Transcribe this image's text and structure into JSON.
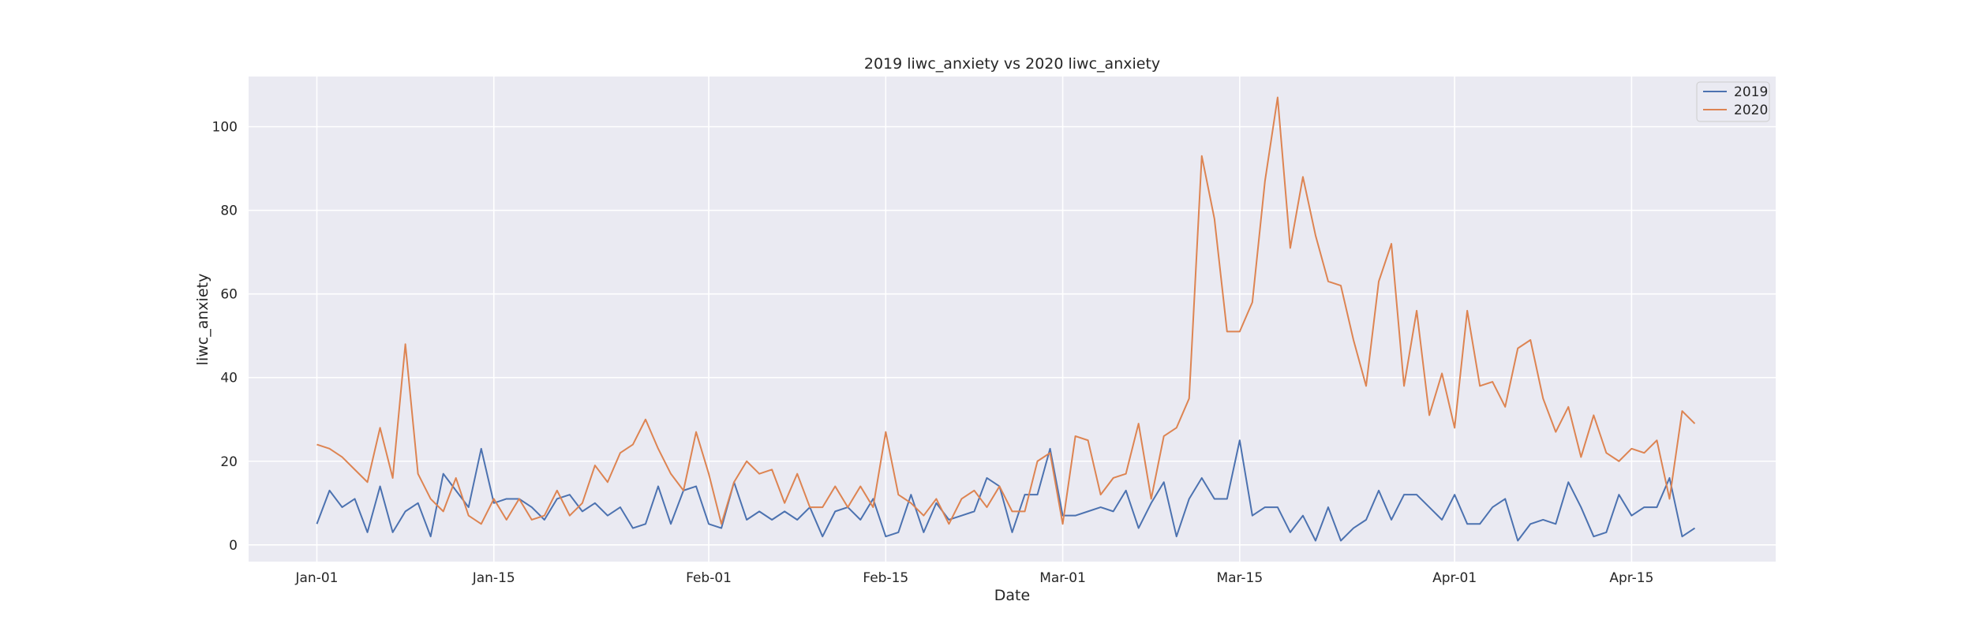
{
  "chart_data": {
    "type": "line",
    "title": "2019 liwc_anxiety vs 2020 liwc_anxiety",
    "xlabel": "Date",
    "ylabel": "liwc_anxiety",
    "x_start": "Jan-01",
    "x_tick_labels": [
      "Jan-01",
      "Jan-15",
      "Feb-01",
      "Feb-15",
      "Mar-01",
      "Mar-15",
      "Apr-01",
      "Apr-15"
    ],
    "x_tick_days": [
      0,
      14,
      31,
      45,
      59,
      73,
      90,
      104
    ],
    "xlim": [
      -5.4,
      115.4
    ],
    "y_ticks": [
      0,
      20,
      40,
      60,
      80,
      100
    ],
    "ylim": [
      -4,
      112
    ],
    "grid": true,
    "legend_position": "top-right",
    "series": [
      {
        "name": "2019",
        "color": "#4c72b0",
        "values": [
          5,
          13,
          9,
          11,
          3,
          14,
          3,
          8,
          10,
          2,
          17,
          13,
          9,
          23,
          10,
          11,
          11,
          9,
          6,
          11,
          12,
          8,
          10,
          7,
          9,
          4,
          5,
          14,
          5,
          13,
          14,
          5,
          4,
          15,
          6,
          8,
          6,
          8,
          6,
          9,
          2,
          8,
          9,
          6,
          11,
          2,
          3,
          12,
          3,
          10,
          6,
          7,
          8,
          16,
          14,
          3,
          12,
          12,
          23,
          7,
          7,
          8,
          9,
          8,
          13,
          4,
          10,
          15,
          2,
          11,
          16,
          11,
          11,
          25,
          7,
          9,
          9,
          3,
          7,
          1,
          9,
          1,
          4,
          6,
          13,
          6,
          12,
          12,
          9,
          6,
          12,
          5,
          5,
          9,
          11,
          1,
          5,
          6,
          5,
          15,
          9,
          2,
          3,
          12,
          7,
          9,
          9,
          16,
          2,
          4
        ]
      },
      {
        "name": "2020",
        "color": "#dd8452",
        "values": [
          24,
          23,
          21,
          18,
          15,
          28,
          16,
          48,
          17,
          11,
          8,
          16,
          7,
          5,
          11,
          6,
          11,
          6,
          7,
          13,
          7,
          10,
          19,
          15,
          22,
          24,
          30,
          23,
          17,
          13,
          27,
          17,
          5,
          15,
          20,
          17,
          18,
          10,
          17,
          9,
          9,
          14,
          9,
          14,
          9,
          27,
          12,
          10,
          7,
          11,
          5,
          11,
          13,
          9,
          14,
          8,
          8,
          20,
          22,
          5,
          26,
          25,
          12,
          16,
          17,
          29,
          11,
          26,
          28,
          35,
          93,
          78,
          51,
          51,
          58,
          87,
          107,
          71,
          88,
          74,
          63,
          62,
          49,
          38,
          63,
          72,
          38,
          56,
          31,
          41,
          28,
          56,
          38,
          39,
          33,
          47,
          49,
          35,
          27,
          33,
          21,
          31,
          22,
          20,
          23,
          22,
          25,
          11,
          32,
          29
        ]
      }
    ]
  }
}
